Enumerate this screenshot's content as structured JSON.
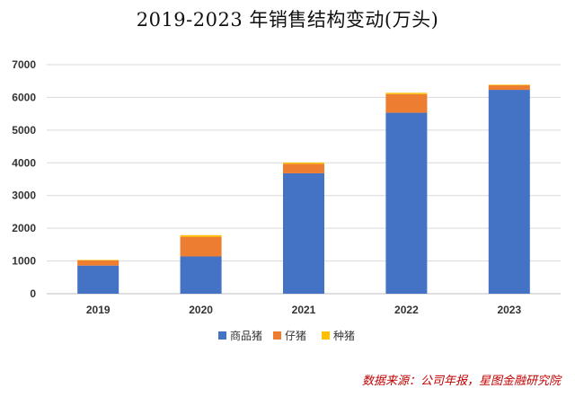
{
  "chart_data": {
    "type": "bar",
    "stacked": true,
    "title": "2019-2023 年销售结构变动(万头)",
    "categories": [
      "2019",
      "2020",
      "2021",
      "2022",
      "2023"
    ],
    "series": [
      {
        "name": "商品猪",
        "color": "#4472C4",
        "values": [
          860,
          1140,
          3680,
          5530,
          6230
        ]
      },
      {
        "name": "仔猪",
        "color": "#ED7D31",
        "values": [
          160,
          600,
          290,
          570,
          140
        ]
      },
      {
        "name": "种猪",
        "color": "#FFC000",
        "values": [
          15,
          50,
          40,
          40,
          20
        ]
      }
    ],
    "ylim": [
      0,
      7000
    ],
    "yticks": [
      0,
      1000,
      2000,
      3000,
      4000,
      5000,
      6000,
      7000
    ],
    "grid": true,
    "legend_position": "bottom"
  },
  "source_note": "数据来源：公司年报，星图金融研究院"
}
